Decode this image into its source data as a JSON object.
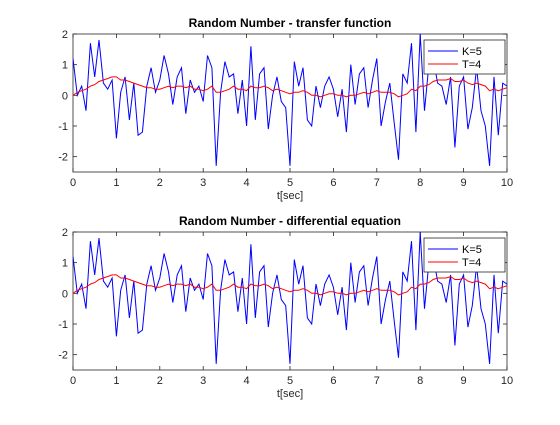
{
  "chart_data": [
    {
      "type": "line",
      "title": "Random Number - transfer function",
      "xlabel": "t[sec]",
      "ylabel": "",
      "xlim": [
        0,
        10
      ],
      "ylim": [
        -2.5,
        2
      ],
      "xticks": [
        0,
        1,
        2,
        3,
        4,
        5,
        6,
        7,
        8,
        9,
        10
      ],
      "yticks": [
        -2,
        -1,
        0,
        1,
        2
      ],
      "grid": false,
      "legend_position": "top-right",
      "series": [
        {
          "name": "K=5",
          "color": "#0000ff",
          "x": [
            0,
            0.1,
            0.2,
            0.3,
            0.4,
            0.5,
            0.6,
            0.7,
            0.8,
            0.9,
            1.0,
            1.1,
            1.2,
            1.3,
            1.4,
            1.5,
            1.6,
            1.7,
            1.8,
            1.9,
            2.0,
            2.1,
            2.2,
            2.3,
            2.4,
            2.5,
            2.6,
            2.7,
            2.8,
            2.9,
            3.0,
            3.1,
            3.2,
            3.3,
            3.4,
            3.5,
            3.6,
            3.7,
            3.8,
            3.9,
            4.0,
            4.1,
            4.2,
            4.3,
            4.4,
            4.5,
            4.6,
            4.7,
            4.8,
            4.9,
            5.0,
            5.1,
            5.2,
            5.3,
            5.4,
            5.5,
            5.6,
            5.7,
            5.8,
            5.9,
            6.0,
            6.1,
            6.2,
            6.3,
            6.4,
            6.5,
            6.6,
            6.7,
            6.8,
            6.9,
            7.0,
            7.1,
            7.2,
            7.3,
            7.4,
            7.5,
            7.6,
            7.7,
            7.8,
            7.9,
            8.0,
            8.1,
            8.2,
            8.3,
            8.4,
            8.5,
            8.6,
            8.7,
            8.8,
            8.9,
            9.0,
            9.1,
            9.2,
            9.3,
            9.4,
            9.5,
            9.6,
            9.7,
            9.8,
            9.9,
            10.0
          ],
          "y": [
            1.2,
            0.0,
            0.3,
            -0.5,
            1.7,
            0.6,
            1.8,
            0.4,
            0.2,
            0.5,
            -1.4,
            0.1,
            0.6,
            -0.8,
            0.4,
            -1.3,
            -1.2,
            0.3,
            0.9,
            0.1,
            0.5,
            1.3,
            0.7,
            -0.3,
            0.6,
            0.9,
            -0.6,
            0.5,
            0.1,
            0.3,
            -0.2,
            1.3,
            0.9,
            -2.3,
            0.1,
            1.1,
            0.6,
            0.7,
            -0.6,
            0.5,
            -1.0,
            1.6,
            -0.8,
            0.7,
            0.9,
            -1.1,
            0.0,
            0.6,
            -0.2,
            -0.4,
            -2.3,
            1.1,
            0.3,
            0.9,
            -0.8,
            -1.0,
            0.3,
            -0.4,
            0.3,
            0.6,
            0.2,
            -0.7,
            0.2,
            -1.2,
            1.0,
            -0.3,
            0.7,
            0.9,
            -0.4,
            0.5,
            1.2,
            -1.0,
            -0.2,
            0.4,
            -0.9,
            -2.1,
            0.7,
            0.4,
            1.7,
            -1.2,
            2.0,
            -0.5,
            1.0,
            1.2,
            0.4,
            0.3,
            -0.3,
            0.6,
            -1.7,
            0.3,
            0.6,
            -1.1,
            -0.4,
            0.9,
            -0.5,
            -1.0,
            -2.3,
            0.6,
            -1.3,
            0.4,
            0.3
          ]
        },
        {
          "name": "T=4",
          "color": "#ff0000",
          "x": [
            0,
            0.1,
            0.2,
            0.3,
            0.4,
            0.5,
            0.6,
            0.7,
            0.8,
            0.9,
            1.0,
            1.1,
            1.2,
            1.3,
            1.4,
            1.5,
            1.6,
            1.7,
            1.8,
            1.9,
            2.0,
            2.1,
            2.2,
            2.3,
            2.4,
            2.5,
            2.6,
            2.7,
            2.8,
            2.9,
            3.0,
            3.1,
            3.2,
            3.3,
            3.4,
            3.5,
            3.6,
            3.7,
            3.8,
            3.9,
            4.0,
            4.1,
            4.2,
            4.3,
            4.4,
            4.5,
            4.6,
            4.7,
            4.8,
            4.9,
            5.0,
            5.1,
            5.2,
            5.3,
            5.4,
            5.5,
            5.6,
            5.7,
            5.8,
            5.9,
            6.0,
            6.1,
            6.2,
            6.3,
            6.4,
            6.5,
            6.6,
            6.7,
            6.8,
            6.9,
            7.0,
            7.1,
            7.2,
            7.3,
            7.4,
            7.5,
            7.6,
            7.7,
            7.8,
            7.9,
            8.0,
            8.1,
            8.2,
            8.3,
            8.4,
            8.5,
            8.6,
            8.7,
            8.8,
            8.9,
            9.0,
            9.1,
            9.2,
            9.3,
            9.4,
            9.5,
            9.6,
            9.7,
            9.8,
            9.9,
            10.0
          ],
          "y": [
            0.0,
            0.1,
            0.15,
            0.2,
            0.3,
            0.35,
            0.45,
            0.5,
            0.55,
            0.6,
            0.6,
            0.5,
            0.5,
            0.45,
            0.4,
            0.35,
            0.3,
            0.25,
            0.25,
            0.2,
            0.2,
            0.25,
            0.3,
            0.25,
            0.3,
            0.3,
            0.25,
            0.3,
            0.2,
            0.2,
            0.15,
            0.2,
            0.3,
            0.1,
            0.1,
            0.15,
            0.2,
            0.3,
            0.2,
            0.2,
            0.15,
            0.3,
            0.25,
            0.25,
            0.3,
            0.25,
            0.15,
            0.2,
            0.15,
            0.1,
            0.05,
            0.1,
            0.1,
            0.15,
            0.1,
            0.0,
            0.0,
            -0.05,
            0.0,
            0.05,
            0.05,
            0.0,
            0.0,
            -0.05,
            0.0,
            0.0,
            0.05,
            0.1,
            0.05,
            0.1,
            0.15,
            0.1,
            0.1,
            0.1,
            0.05,
            -0.05,
            0.0,
            0.05,
            0.2,
            0.15,
            0.3,
            0.3,
            0.35,
            0.45,
            0.5,
            0.5,
            0.5,
            0.55,
            0.45,
            0.45,
            0.5,
            0.4,
            0.35,
            0.4,
            0.35,
            0.3,
            0.15,
            0.2,
            0.15,
            0.2,
            0.25
          ]
        }
      ]
    },
    {
      "type": "line",
      "title": "Random Number - differential equation",
      "xlabel": "t[sec]",
      "ylabel": "",
      "xlim": [
        0,
        10
      ],
      "ylim": [
        -2.5,
        2
      ],
      "xticks": [
        0,
        1,
        2,
        3,
        4,
        5,
        6,
        7,
        8,
        9,
        10
      ],
      "yticks": [
        -2,
        -1,
        0,
        1,
        2
      ],
      "grid": false,
      "legend_position": "top-right",
      "series": [
        {
          "name": "K=5",
          "color": "#0000ff",
          "x": [
            0,
            0.1,
            0.2,
            0.3,
            0.4,
            0.5,
            0.6,
            0.7,
            0.8,
            0.9,
            1.0,
            1.1,
            1.2,
            1.3,
            1.4,
            1.5,
            1.6,
            1.7,
            1.8,
            1.9,
            2.0,
            2.1,
            2.2,
            2.3,
            2.4,
            2.5,
            2.6,
            2.7,
            2.8,
            2.9,
            3.0,
            3.1,
            3.2,
            3.3,
            3.4,
            3.5,
            3.6,
            3.7,
            3.8,
            3.9,
            4.0,
            4.1,
            4.2,
            4.3,
            4.4,
            4.5,
            4.6,
            4.7,
            4.8,
            4.9,
            5.0,
            5.1,
            5.2,
            5.3,
            5.4,
            5.5,
            5.6,
            5.7,
            5.8,
            5.9,
            6.0,
            6.1,
            6.2,
            6.3,
            6.4,
            6.5,
            6.6,
            6.7,
            6.8,
            6.9,
            7.0,
            7.1,
            7.2,
            7.3,
            7.4,
            7.5,
            7.6,
            7.7,
            7.8,
            7.9,
            8.0,
            8.1,
            8.2,
            8.3,
            8.4,
            8.5,
            8.6,
            8.7,
            8.8,
            8.9,
            9.0,
            9.1,
            9.2,
            9.3,
            9.4,
            9.5,
            9.6,
            9.7,
            9.8,
            9.9,
            10.0
          ],
          "y": [
            1.2,
            0.0,
            0.3,
            -0.5,
            1.7,
            0.6,
            1.8,
            0.4,
            0.2,
            0.5,
            -1.4,
            0.1,
            0.6,
            -0.8,
            0.4,
            -1.3,
            -1.2,
            0.3,
            0.9,
            0.1,
            0.5,
            1.3,
            0.7,
            -0.3,
            0.6,
            0.9,
            -0.6,
            0.5,
            0.1,
            0.3,
            -0.2,
            1.3,
            0.9,
            -2.3,
            0.1,
            1.1,
            0.6,
            0.7,
            -0.6,
            0.5,
            -1.0,
            1.6,
            -0.8,
            0.7,
            0.9,
            -1.1,
            0.0,
            0.6,
            -0.2,
            -0.4,
            -2.3,
            1.1,
            0.3,
            0.9,
            -0.8,
            -1.0,
            0.3,
            -0.4,
            0.3,
            0.6,
            0.2,
            -0.7,
            0.2,
            -1.2,
            1.0,
            -0.3,
            0.7,
            0.9,
            -0.4,
            0.5,
            1.2,
            -1.0,
            -0.2,
            0.4,
            -0.9,
            -2.1,
            0.7,
            0.4,
            1.7,
            -1.2,
            2.0,
            -0.5,
            1.0,
            1.2,
            0.4,
            0.3,
            -0.3,
            0.6,
            -1.7,
            0.3,
            0.6,
            -1.1,
            -0.4,
            0.9,
            -0.5,
            -1.0,
            -2.3,
            0.6,
            -1.3,
            0.4,
            0.3
          ]
        },
        {
          "name": "T=4",
          "color": "#ff0000",
          "x": [
            0,
            0.1,
            0.2,
            0.3,
            0.4,
            0.5,
            0.6,
            0.7,
            0.8,
            0.9,
            1.0,
            1.1,
            1.2,
            1.3,
            1.4,
            1.5,
            1.6,
            1.7,
            1.8,
            1.9,
            2.0,
            2.1,
            2.2,
            2.3,
            2.4,
            2.5,
            2.6,
            2.7,
            2.8,
            2.9,
            3.0,
            3.1,
            3.2,
            3.3,
            3.4,
            3.5,
            3.6,
            3.7,
            3.8,
            3.9,
            4.0,
            4.1,
            4.2,
            4.3,
            4.4,
            4.5,
            4.6,
            4.7,
            4.8,
            4.9,
            5.0,
            5.1,
            5.2,
            5.3,
            5.4,
            5.5,
            5.6,
            5.7,
            5.8,
            5.9,
            6.0,
            6.1,
            6.2,
            6.3,
            6.4,
            6.5,
            6.6,
            6.7,
            6.8,
            6.9,
            7.0,
            7.1,
            7.2,
            7.3,
            7.4,
            7.5,
            7.6,
            7.7,
            7.8,
            7.9,
            8.0,
            8.1,
            8.2,
            8.3,
            8.4,
            8.5,
            8.6,
            8.7,
            8.8,
            8.9,
            9.0,
            9.1,
            9.2,
            9.3,
            9.4,
            9.5,
            9.6,
            9.7,
            9.8,
            9.9,
            10.0
          ],
          "y": [
            0.0,
            0.1,
            0.15,
            0.2,
            0.3,
            0.35,
            0.45,
            0.5,
            0.55,
            0.6,
            0.6,
            0.5,
            0.5,
            0.45,
            0.4,
            0.35,
            0.3,
            0.25,
            0.25,
            0.2,
            0.2,
            0.25,
            0.3,
            0.25,
            0.3,
            0.3,
            0.25,
            0.3,
            0.2,
            0.2,
            0.15,
            0.2,
            0.3,
            0.1,
            0.1,
            0.15,
            0.2,
            0.3,
            0.2,
            0.2,
            0.15,
            0.3,
            0.25,
            0.25,
            0.3,
            0.25,
            0.15,
            0.2,
            0.15,
            0.1,
            0.05,
            0.1,
            0.1,
            0.15,
            0.1,
            0.0,
            0.0,
            -0.05,
            0.0,
            0.05,
            0.05,
            0.0,
            0.0,
            -0.05,
            0.0,
            0.0,
            0.05,
            0.1,
            0.05,
            0.1,
            0.15,
            0.1,
            0.1,
            0.1,
            0.05,
            -0.05,
            0.0,
            0.05,
            0.2,
            0.15,
            0.3,
            0.3,
            0.35,
            0.45,
            0.5,
            0.5,
            0.5,
            0.55,
            0.45,
            0.45,
            0.5,
            0.4,
            0.35,
            0.4,
            0.35,
            0.3,
            0.15,
            0.2,
            0.15,
            0.2,
            0.25
          ]
        }
      ]
    }
  ]
}
